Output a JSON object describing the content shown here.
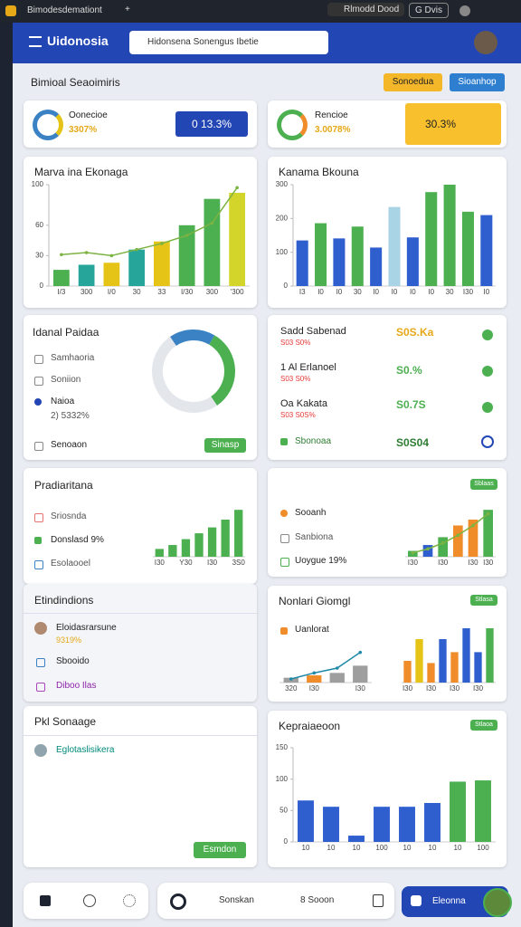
{
  "browser": {
    "tab": "Bimodesdemationt",
    "new_tab": "+",
    "profile": "Rlmodd Dood",
    "badge": "G Dvis"
  },
  "header": {
    "title": "Uidonosia",
    "search": "Hidonsena  Sonengus  Ibetie"
  },
  "section": {
    "title": "Bimioal Seaoimiris",
    "btn_yellow": "Sonoedua",
    "btn_blue": "Sioanhop"
  },
  "stats": [
    {
      "label": "Oonecioe",
      "value": "3307%",
      "box": "0 13.3%"
    },
    {
      "label": "Rencioe",
      "value": "3.0078%",
      "box": "30.3%"
    }
  ],
  "idanal": {
    "title": "Idanal Paidaa",
    "items": [
      "Samhaoria",
      "Soniion",
      "Naioa"
    ],
    "sub": "2) 5332%",
    "footer": "Senoaon",
    "button": "Sinasp"
  },
  "list": {
    "rows": [
      {
        "name": "Sadd Sabenad",
        "sub": "S03 S0%",
        "value": "S0S.Ka"
      },
      {
        "name": "1 Al Erlanoel",
        "sub": "S03 S0%",
        "value": "S0.%"
      },
      {
        "name": "Oa Kakata",
        "sub": "S03 S0S%",
        "value": "S0.7S"
      }
    ],
    "footer": {
      "label": "Sbonoaa",
      "value": "S0S04"
    }
  },
  "pradi": {
    "items": [
      "Sriosnda",
      "Donslasd 9%",
      "Esolaooel"
    ]
  },
  "etoinoe": {
    "badge": "Sblaas",
    "items": [
      "Sooanh",
      "Sanbiona",
      "Uoygue 19%"
    ]
  },
  "etind": {
    "title": "Etindindions",
    "items": [
      "Eloidasrarsune",
      "9319%",
      "Sbooido",
      "Diboo Ilas"
    ]
  },
  "nonlari": {
    "title": "Nonlari Giomgl",
    "badge": "Stlasa",
    "item": "Uanlorat"
  },
  "pkl": {
    "title": "Pkl Sonaage",
    "item": "Eglotaslisikera",
    "button": "Esmdon"
  },
  "kepra": {
    "badge": "Stlaoa"
  },
  "bottom": {
    "search": "Sonskan",
    "tab": "8 Sooon",
    "user": "Eleonna"
  },
  "charts": [
    {
      "type": "bar",
      "title": "Marva ina Ekonaga",
      "ylim": [
        0,
        100
      ],
      "yticks": [
        0,
        30,
        60,
        100
      ],
      "categories": [
        "I/3",
        "300",
        "I/0",
        "30",
        "33",
        "I/30",
        "300",
        "'300"
      ],
      "series": [
        {
          "type": "bar",
          "colors": [
            "#4caf50",
            "#26a69a",
            "#e6c417",
            "#26a69a",
            "#e6c417",
            "#4caf50",
            "#4caf50",
            "#d4d52a"
          ],
          "values": [
            16,
            21,
            23,
            36,
            44,
            60,
            86,
            92
          ]
        },
        {
          "type": "line",
          "color": "#7cb342",
          "values": [
            31,
            33,
            30,
            36,
            42,
            50,
            62,
            97
          ]
        }
      ]
    },
    {
      "type": "bar",
      "title": "Kanama Bkouna",
      "ylim": [
        0,
        300
      ],
      "yticks": [
        0,
        100,
        200,
        300
      ],
      "categories": [
        "I3",
        "I0",
        "I0",
        "30",
        "I0",
        "I0",
        "I0",
        "I0",
        "30",
        "I30",
        "I0"
      ],
      "series": [
        {
          "type": "bar",
          "colors": [
            "#2f5fcf",
            "#4caf50",
            "#2f5fcf",
            "#4caf50",
            "#2f5fcf",
            "#a8d4e6",
            "#2f5fcf",
            "#4caf50",
            "#4caf50",
            "#4caf50",
            "#2f5fcf"
          ],
          "values": [
            135,
            186,
            141,
            176,
            114,
            234,
            144,
            278,
            300,
            220,
            210
          ]
        }
      ]
    },
    {
      "type": "donut",
      "values": [
        18,
        32,
        50
      ],
      "colors": [
        "#3b82c4",
        "#4caf50",
        "#e3e7ec"
      ]
    },
    {
      "type": "bar",
      "title": "Pradiaritana",
      "ylim": [
        0,
        50
      ],
      "categories": [
        "I30",
        null,
        "Y30",
        null,
        "I30",
        null,
        "3S0"
      ],
      "series": [
        {
          "type": "bar",
          "colors": [
            "#4caf50",
            "#4caf50",
            "#4caf50",
            "#4caf50",
            "#4caf50",
            "#4caf50",
            "#4caf50"
          ],
          "values": [
            8,
            12,
            18,
            24,
            30,
            38,
            48
          ]
        }
      ]
    },
    {
      "type": "bar",
      "ylim": [
        0,
        50
      ],
      "categories": [
        "I30",
        null,
        "I30",
        null,
        "I30",
        "I30"
      ],
      "series": [
        {
          "type": "bar",
          "colors": [
            "#4caf50",
            "#2f5fcf",
            "#4caf50",
            "#f08c2a",
            "#f08c2a",
            "#4caf50"
          ],
          "values": [
            6,
            12,
            20,
            32,
            38,
            48
          ]
        },
        {
          "type": "line",
          "color": "#7cb342",
          "values": [
            4,
            8,
            14,
            22,
            32,
            44
          ]
        }
      ]
    },
    {
      "type": "bar",
      "ylim": [
        0,
        30
      ],
      "categories": [
        "320",
        "I30",
        null,
        "I30"
      ],
      "series": [
        {
          "type": "bar",
          "colors": [
            "#9e9e9e",
            "#f08c2a",
            "#9e9e9e",
            "#9e9e9e"
          ],
          "values": [
            4,
            6,
            8,
            14
          ]
        },
        {
          "type": "line",
          "color": "#1e88a8",
          "values": [
            3,
            8,
            12,
            25
          ]
        }
      ]
    },
    {
      "type": "bar",
      "ylim": [
        0,
        50
      ],
      "categories": [
        "I30",
        null,
        "I30",
        null,
        "I30",
        null,
        "I30",
        null
      ],
      "series": [
        {
          "type": "bar",
          "colors": [
            "#f08c2a",
            "#e6c417",
            "#f08c2a",
            "#2f5fcf",
            "#f08c2a",
            "#2f5fcf",
            "#2f5fcf",
            "#4caf50"
          ],
          "values": [
            20,
            40,
            18,
            40,
            28,
            50,
            28,
            50
          ]
        }
      ]
    },
    {
      "type": "bar",
      "title": "Kepraiaeoon",
      "ylim": [
        0,
        150
      ],
      "yticks": [
        0,
        50,
        100,
        150
      ],
      "categories": [
        "10",
        "10",
        "10",
        "100",
        "10",
        "10",
        "10",
        "100"
      ],
      "series": [
        {
          "type": "bar",
          "colors": [
            "#2f5fcf",
            "#2f5fcf",
            "#2f5fcf",
            "#2f5fcf",
            "#2f5fcf",
            "#2f5fcf",
            "#4caf50",
            "#4caf50"
          ],
          "values": [
            66,
            56,
            10,
            56,
            56,
            62,
            96,
            98
          ]
        }
      ]
    }
  ]
}
